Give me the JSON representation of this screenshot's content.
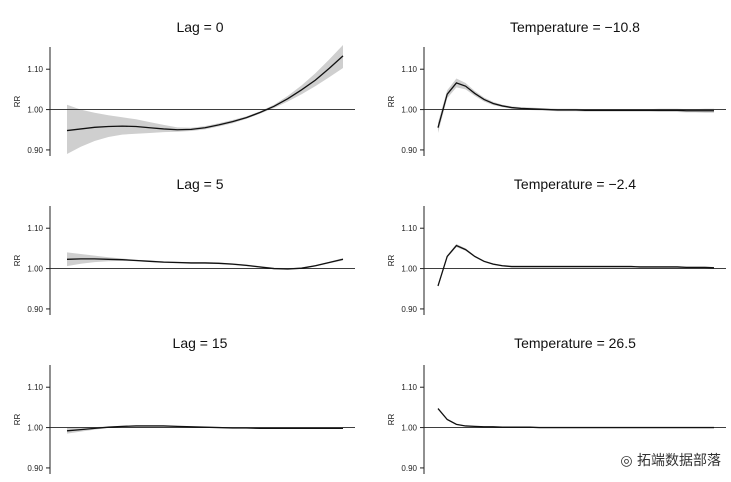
{
  "chart_data": [
    {
      "type": "line",
      "title": "Lag = 0",
      "ylabel": "RR",
      "ylim": [
        0.88,
        1.16
      ],
      "yticks": [
        "0.90",
        "1.00",
        "1.10"
      ],
      "reference_line": 1.0,
      "x": [
        0,
        0.05,
        0.1,
        0.15,
        0.2,
        0.25,
        0.3,
        0.35,
        0.4,
        0.45,
        0.5,
        0.55,
        0.6,
        0.65,
        0.7,
        0.75,
        0.8,
        0.85,
        0.9,
        0.95,
        1.0
      ],
      "series": [
        {
          "values": [
            0.948,
            0.952,
            0.956,
            0.958,
            0.959,
            0.958,
            0.955,
            0.952,
            0.95,
            0.951,
            0.955,
            0.962,
            0.97,
            0.98,
            0.993,
            1.008,
            1.027,
            1.049,
            1.073,
            1.102,
            1.133
          ],
          "lower": [
            0.89,
            0.908,
            0.922,
            0.932,
            0.938,
            0.94,
            0.942,
            0.944,
            0.945,
            0.947,
            0.951,
            0.958,
            0.966,
            0.977,
            0.99,
            1.004,
            1.02,
            1.038,
            1.058,
            1.08,
            1.103
          ],
          "upper": [
            1.012,
            1.0,
            0.992,
            0.986,
            0.981,
            0.976,
            0.969,
            0.962,
            0.956,
            0.955,
            0.959,
            0.966,
            0.974,
            0.983,
            0.996,
            1.012,
            1.034,
            1.06,
            1.09,
            1.124,
            1.16
          ]
        }
      ]
    },
    {
      "type": "line",
      "title": "Temperature = −10.8",
      "ylabel": "RR",
      "ylim": [
        0.88,
        1.16
      ],
      "yticks": [
        "0.90",
        "1.00",
        "1.10"
      ],
      "reference_line": 1.0,
      "x": [
        0,
        1,
        2,
        3,
        4,
        5,
        6,
        7,
        8,
        9,
        10,
        11,
        12,
        13,
        14,
        15,
        16,
        17,
        18,
        19,
        20,
        21,
        22,
        23,
        24,
        25,
        26,
        27,
        28,
        29,
        30
      ],
      "series": [
        {
          "values": [
            0.955,
            1.038,
            1.066,
            1.058,
            1.04,
            1.025,
            1.015,
            1.009,
            1.005,
            1.003,
            1.002,
            1.001,
            1.0,
            0.999,
            0.999,
            0.999,
            0.998,
            0.998,
            0.998,
            0.998,
            0.998,
            0.998,
            0.998,
            0.998,
            0.998,
            0.998,
            0.998,
            0.997,
            0.997,
            0.997,
            0.997
          ],
          "lower": [
            0.942,
            1.028,
            1.055,
            1.05,
            1.034,
            1.02,
            1.011,
            1.006,
            1.002,
            1.0,
            0.999,
            0.998,
            0.997,
            0.996,
            0.996,
            0.996,
            0.995,
            0.995,
            0.995,
            0.995,
            0.995,
            0.995,
            0.995,
            0.995,
            0.994,
            0.994,
            0.994,
            0.993,
            0.993,
            0.992,
            0.992
          ],
          "upper": [
            0.968,
            1.048,
            1.077,
            1.066,
            1.046,
            1.03,
            1.019,
            1.012,
            1.008,
            1.006,
            1.005,
            1.004,
            1.003,
            1.002,
            1.002,
            1.002,
            1.001,
            1.001,
            1.001,
            1.001,
            1.001,
            1.001,
            1.001,
            1.001,
            1.002,
            1.002,
            1.002,
            1.001,
            1.001,
            1.002,
            1.002
          ]
        }
      ]
    },
    {
      "type": "line",
      "title": "Lag = 5",
      "ylabel": "RR",
      "ylim": [
        0.88,
        1.16
      ],
      "yticks": [
        "0.90",
        "1.00",
        "1.10"
      ],
      "reference_line": 1.0,
      "x": [
        0,
        0.05,
        0.1,
        0.15,
        0.2,
        0.25,
        0.3,
        0.35,
        0.4,
        0.45,
        0.5,
        0.55,
        0.6,
        0.65,
        0.7,
        0.75,
        0.8,
        0.85,
        0.9,
        0.95,
        1.0
      ],
      "series": [
        {
          "values": [
            1.023,
            1.024,
            1.024,
            1.023,
            1.022,
            1.02,
            1.018,
            1.016,
            1.015,
            1.014,
            1.014,
            1.013,
            1.011,
            1.008,
            1.004,
            1.0,
            0.999,
            1.001,
            1.007,
            1.015,
            1.023
          ],
          "lower": [
            1.006,
            1.012,
            1.016,
            1.018,
            1.019,
            1.018,
            1.016,
            1.014,
            1.013,
            1.012,
            1.012,
            1.011,
            1.009,
            1.006,
            1.002,
            0.998,
            0.997,
            0.999,
            1.005,
            1.013,
            1.02
          ],
          "upper": [
            1.04,
            1.036,
            1.032,
            1.028,
            1.025,
            1.022,
            1.02,
            1.018,
            1.017,
            1.016,
            1.016,
            1.015,
            1.013,
            1.01,
            1.006,
            1.002,
            1.001,
            1.003,
            1.009,
            1.017,
            1.026
          ]
        }
      ]
    },
    {
      "type": "line",
      "title": "Temperature = −2.4",
      "ylabel": "RR",
      "ylim": [
        0.88,
        1.16
      ],
      "yticks": [
        "0.90",
        "1.00",
        "1.10"
      ],
      "reference_line": 1.0,
      "x": [
        0,
        1,
        2,
        3,
        4,
        5,
        6,
        7,
        8,
        9,
        10,
        11,
        12,
        13,
        14,
        15,
        16,
        17,
        18,
        19,
        20,
        21,
        22,
        23,
        24,
        25,
        26,
        27,
        28,
        29,
        30
      ],
      "series": [
        {
          "values": [
            0.957,
            1.03,
            1.057,
            1.047,
            1.03,
            1.018,
            1.011,
            1.007,
            1.005,
            1.005,
            1.005,
            1.005,
            1.005,
            1.005,
            1.005,
            1.005,
            1.005,
            1.005,
            1.005,
            1.005,
            1.005,
            1.005,
            1.004,
            1.004,
            1.004,
            1.004,
            1.004,
            1.003,
            1.003,
            1.003,
            1.002
          ],
          "lower": [
            0.954,
            1.027,
            1.053,
            1.044,
            1.028,
            1.016,
            1.009,
            1.005,
            1.003,
            1.003,
            1.003,
            1.003,
            1.003,
            1.003,
            1.003,
            1.003,
            1.003,
            1.003,
            1.003,
            1.003,
            1.003,
            1.003,
            1.002,
            1.002,
            1.002,
            1.002,
            1.002,
            1.001,
            1.001,
            1.001,
            1.0
          ],
          "upper": [
            0.96,
            1.033,
            1.061,
            1.05,
            1.032,
            1.02,
            1.013,
            1.009,
            1.007,
            1.007,
            1.007,
            1.007,
            1.007,
            1.007,
            1.007,
            1.007,
            1.007,
            1.007,
            1.007,
            1.007,
            1.007,
            1.007,
            1.006,
            1.006,
            1.006,
            1.006,
            1.006,
            1.005,
            1.005,
            1.005,
            1.004
          ]
        }
      ]
    },
    {
      "type": "line",
      "title": "Lag = 15",
      "ylabel": "RR",
      "ylim": [
        0.88,
        1.16
      ],
      "yticks": [
        "0.90",
        "1.00",
        "1.10"
      ],
      "reference_line": 1.0,
      "x": [
        0,
        0.05,
        0.1,
        0.15,
        0.2,
        0.25,
        0.3,
        0.35,
        0.4,
        0.45,
        0.5,
        0.55,
        0.6,
        0.65,
        0.7,
        0.75,
        0.8,
        0.85,
        0.9,
        0.95,
        1.0
      ],
      "series": [
        {
          "values": [
            0.992,
            0.995,
            0.998,
            1.001,
            1.003,
            1.004,
            1.004,
            1.004,
            1.003,
            1.002,
            1.001,
            1.0,
            0.999,
            0.999,
            0.998,
            0.998,
            0.998,
            0.998,
            0.998,
            0.998,
            0.998
          ],
          "lower": [
            0.985,
            0.99,
            0.995,
            0.999,
            1.002,
            1.003,
            1.003,
            1.003,
            1.002,
            1.001,
            1.0,
            0.999,
            0.998,
            0.998,
            0.997,
            0.997,
            0.997,
            0.997,
            0.997,
            0.997,
            0.997
          ],
          "upper": [
            0.999,
            1.0,
            1.001,
            1.003,
            1.004,
            1.005,
            1.005,
            1.005,
            1.004,
            1.003,
            1.002,
            1.001,
            1.0,
            1.0,
            0.999,
            0.999,
            0.999,
            0.999,
            0.999,
            0.999,
            0.999
          ]
        }
      ]
    },
    {
      "type": "line",
      "title": "Temperature = 26.5",
      "ylabel": "RR",
      "ylim": [
        0.88,
        1.16
      ],
      "yticks": [
        "0.90",
        "1.00",
        "1.10"
      ],
      "reference_line": 1.0,
      "x": [
        0,
        1,
        2,
        3,
        4,
        5,
        6,
        7,
        8,
        9,
        10,
        11,
        12,
        13,
        14,
        15,
        16,
        17,
        18,
        19,
        20,
        21,
        22,
        23,
        24,
        25,
        26,
        27,
        28,
        29,
        30
      ],
      "series": [
        {
          "values": [
            1.047,
            1.02,
            1.008,
            1.004,
            1.003,
            1.002,
            1.002,
            1.001,
            1.001,
            1.001,
            1.001,
            1.0,
            1.0,
            1.0,
            1.0,
            1.0,
            1.0,
            1.0,
            1.0,
            1.0,
            1.0,
            1.0,
            1.0,
            1.0,
            1.0,
            1.0,
            1.0,
            1.0,
            1.0,
            1.0,
            1.0
          ],
          "lower": [
            1.045,
            1.018,
            1.007,
            1.003,
            1.002,
            1.001,
            1.001,
            1.0,
            1.0,
            1.0,
            1.0,
            0.999,
            0.999,
            0.999,
            0.999,
            0.999,
            0.999,
            0.999,
            0.999,
            0.999,
            0.999,
            0.999,
            0.999,
            0.999,
            0.999,
            0.999,
            0.999,
            0.999,
            0.999,
            0.999,
            0.999
          ],
          "upper": [
            1.049,
            1.022,
            1.009,
            1.005,
            1.004,
            1.003,
            1.003,
            1.002,
            1.002,
            1.002,
            1.002,
            1.001,
            1.001,
            1.001,
            1.001,
            1.001,
            1.001,
            1.001,
            1.001,
            1.001,
            1.001,
            1.001,
            1.001,
            1.001,
            1.001,
            1.001,
            1.001,
            1.001,
            1.001,
            1.001,
            1.001
          ]
        }
      ]
    }
  ],
  "watermark": {
    "brand": "拓端数据部落",
    "url": "https://blog.csdn.net/qq_19600291",
    "icon": "wechat-icon"
  },
  "colors": {
    "band": "#cfcfcf",
    "line": "#111111"
  }
}
